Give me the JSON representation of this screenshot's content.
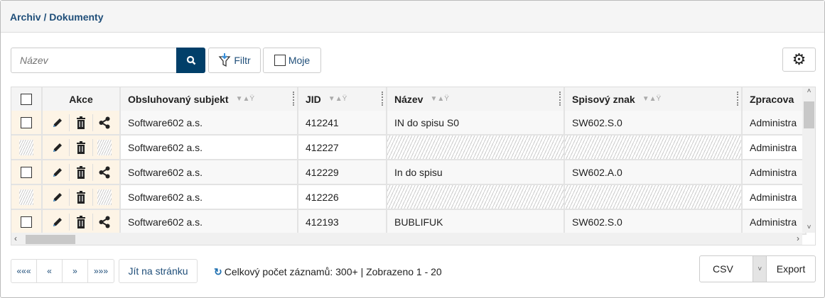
{
  "breadcrumb": "Archiv / Dokumenty",
  "toolbar": {
    "search_placeholder": "Název",
    "filter_label": "Filtr",
    "mine_label": "Moje"
  },
  "table": {
    "headers": [
      "Akce",
      "Obsluhovaný subjekt",
      "JID",
      "Název",
      "Spisový znak",
      "Zpracova"
    ],
    "rows": [
      {
        "subjekt": "Software602 a.s.",
        "jid": "412241",
        "nazev": "IN do spisu S0",
        "znak": "SW602.S.0",
        "zprac": "Administra",
        "restricted": false
      },
      {
        "subjekt": "Software602 a.s.",
        "jid": "412227",
        "nazev": "",
        "znak": "",
        "zprac": "Administra",
        "restricted": true
      },
      {
        "subjekt": "Software602 a.s.",
        "jid": "412229",
        "nazev": "In do spisu",
        "znak": "SW602.A.0",
        "zprac": "Administra",
        "restricted": false
      },
      {
        "subjekt": "Software602 a.s.",
        "jid": "412226",
        "nazev": "",
        "znak": "",
        "zprac": "Administra",
        "restricted": true
      },
      {
        "subjekt": "Software602 a.s.",
        "jid": "412193",
        "nazev": "BUBLIFUK",
        "znak": "SW602.S.0",
        "zprac": "Administra",
        "restricted": false
      }
    ]
  },
  "pagination": {
    "first": "«««",
    "prev": "«",
    "next": "»",
    "last": "»»»",
    "goto": "Jít na stránku"
  },
  "status": "Celkový počet záznamů: 300+ | Zobrazeno 1 - 20",
  "export": {
    "format": "CSV",
    "label": "Export"
  },
  "colors": {
    "primary": "#013f69",
    "actions_bg": "#fdf4e6"
  }
}
